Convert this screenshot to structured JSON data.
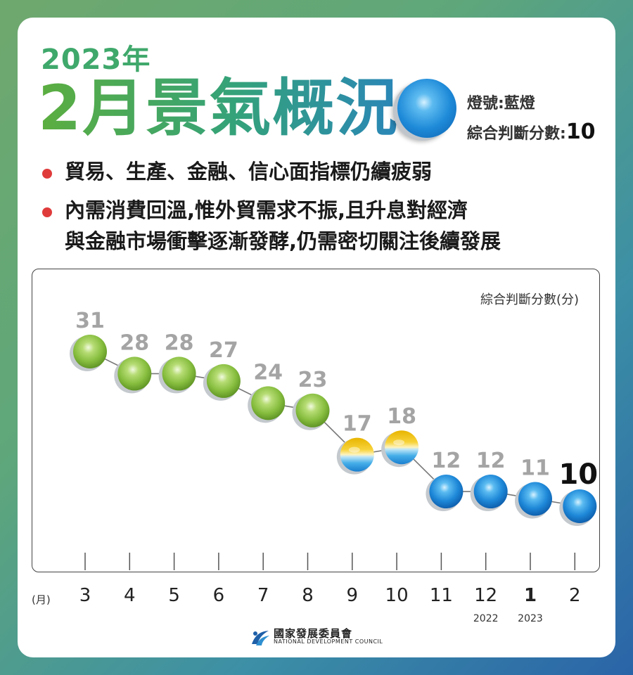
{
  "header": {
    "year": "2023年",
    "title": "2月景氣概況",
    "light_label": "燈號:藍燈",
    "score_label": "綜合判斷分數:",
    "score_value": "10"
  },
  "bullets": [
    "貿易、生產、金融、信心面指標仍續疲弱",
    "內需消費回溫,惟外貿需求不振,且升息對經濟",
    "與金融市場衝擊逐漸發酵,仍需密切關注後續發展"
  ],
  "chart_data": {
    "type": "line",
    "ylabel": "綜合判斷分數(分)",
    "xlabel": "(月)",
    "categories": [
      "3",
      "4",
      "5",
      "6",
      "7",
      "8",
      "9",
      "10",
      "11",
      "12",
      "1",
      "2"
    ],
    "year_labels": [
      "",
      "",
      "",
      "",
      "",
      "",
      "",
      "",
      "",
      "2022",
      "2023",
      ""
    ],
    "values": [
      31,
      28,
      28,
      27,
      24,
      23,
      17,
      18,
      12,
      12,
      11,
      10
    ],
    "signal_lights": [
      "green",
      "green",
      "green",
      "green",
      "green",
      "green",
      "yellow-blue",
      "yellow-blue",
      "blue",
      "blue",
      "blue",
      "blue"
    ],
    "ylim": [
      9,
      33
    ],
    "grid": false
  },
  "colors": {
    "green_light": "#8cc63f",
    "yellow_light": "#f5c400",
    "blue_light": "#1e88d8",
    "bullet_dot": "#e03b3b",
    "title_green": "#3fa86b"
  },
  "footer": {
    "org_cn": "國家發展委員會",
    "org_en": "NATIONAL DEVELOPMENT COUNCIL"
  }
}
